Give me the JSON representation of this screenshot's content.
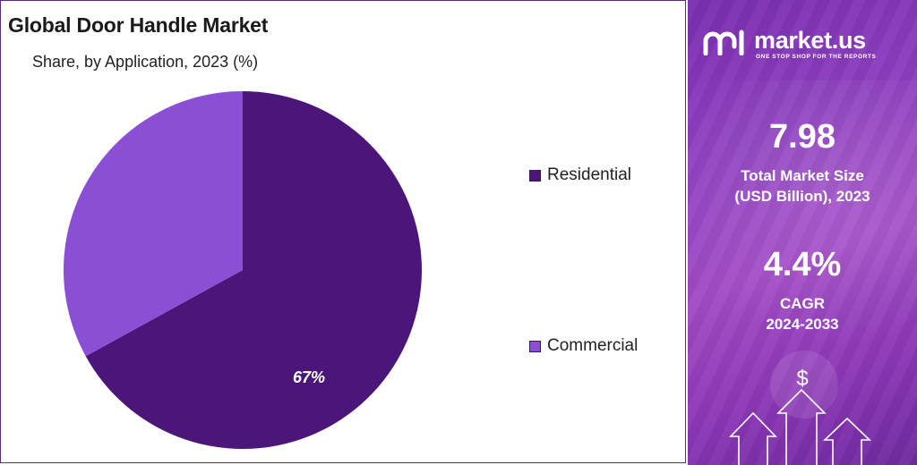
{
  "chart_data": {
    "type": "pie",
    "title": "Global Door Handle Market",
    "subtitle": "Share, by Application, 2023 (%)",
    "categories": [
      "Residential",
      "Commercial"
    ],
    "values": [
      67,
      33
    ],
    "data_labels": [
      "67%",
      ""
    ],
    "colors": [
      "#4c157a",
      "#8b4fd6"
    ],
    "legend_position": "right"
  },
  "sidebar": {
    "brand_name": "market.us",
    "brand_tagline": "ONE STOP SHOP FOR THE REPORTS",
    "market_size_value": "7.98",
    "market_size_label_1": "Total Market Size",
    "market_size_label_2": "(USD Billion), 2023",
    "cagr_value": "4.4%",
    "cagr_label_1": "CAGR",
    "cagr_label_2": "2024-2033",
    "dollar_symbol": "$",
    "logo_icon": "market-us-logo-icon",
    "growth_icon": "growth-arrows-icon"
  }
}
